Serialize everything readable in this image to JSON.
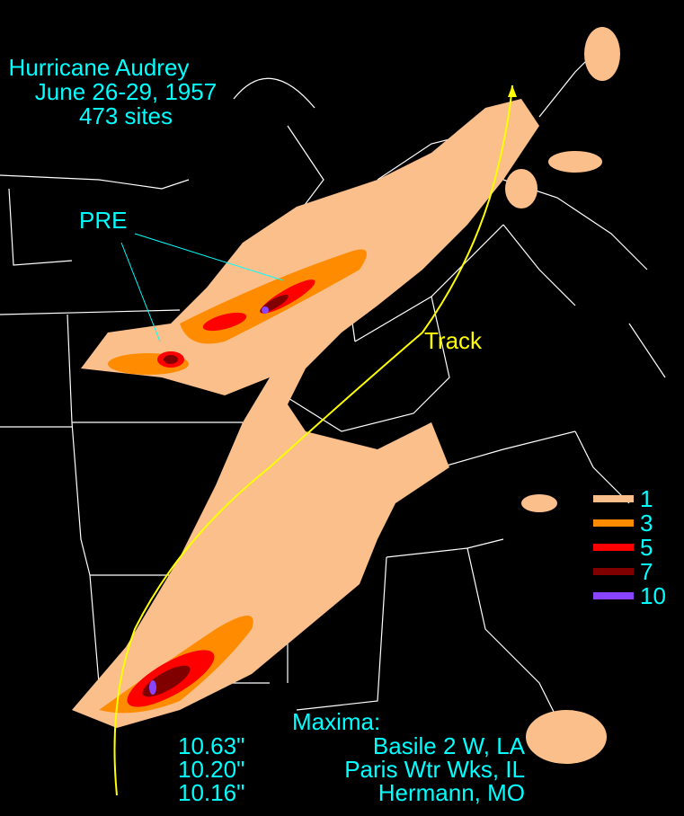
{
  "header": {
    "title": "Hurricane Audrey",
    "dates": "June 26-29, 1957",
    "sites": "473 sites"
  },
  "annotations": {
    "pre": "PRE",
    "track": "Track"
  },
  "legend": [
    {
      "value": 1,
      "color": "#fbbf8c"
    },
    {
      "value": 3,
      "color": "#ff8c00"
    },
    {
      "value": 5,
      "color": "#ff0000"
    },
    {
      "value": 7,
      "color": "#800000"
    },
    {
      "value": 10,
      "color": "#8844ff"
    }
  ],
  "maxima": {
    "heading": "Maxima:",
    "rows": [
      {
        "amount": "10.63\"",
        "site": "Basile 2 W, LA"
      },
      {
        "amount": "10.20\"",
        "site": "Paris Wtr Wks, IL"
      },
      {
        "amount": "10.16\"",
        "site": "Hermann, MO"
      }
    ]
  }
}
